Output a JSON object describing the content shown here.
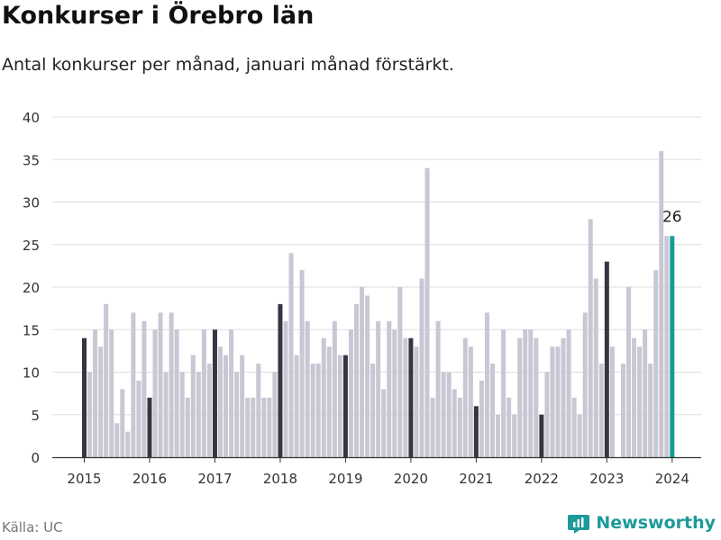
{
  "header": {
    "title": "Konkurser i Örebro län",
    "subtitle": "Antal konkurser per månad, januari månad förstärkt."
  },
  "footer": {
    "source": "Källa: UC",
    "brand": "Newsworthy"
  },
  "colors": {
    "bar": "#c8c8d4",
    "january": "#363642",
    "latest": "#159c94",
    "grid": "#dddddd",
    "axis": "#333333",
    "brand": "#1d9a9a"
  },
  "chart_data": {
    "type": "bar",
    "title": "Konkurser i Örebro län",
    "subtitle": "Antal konkurser per månad, januari månad förstärkt.",
    "xlabel": "",
    "ylabel": "",
    "ylim": [
      0,
      40
    ],
    "y_ticks": [
      0,
      5,
      10,
      15,
      20,
      25,
      30,
      35,
      40
    ],
    "x_tick_labels": [
      "2015",
      "2016",
      "2017",
      "2018",
      "2019",
      "2020",
      "2021",
      "2022",
      "2023",
      "2024"
    ],
    "grid": true,
    "start": "2015-01",
    "highlight": "January bars dark, latest bar teal",
    "last_label": "26",
    "values": [
      14,
      10,
      15,
      13,
      18,
      15,
      4,
      8,
      3,
      17,
      9,
      16,
      7,
      15,
      17,
      10,
      17,
      15,
      10,
      7,
      12,
      10,
      15,
      11,
      15,
      13,
      12,
      15,
      10,
      12,
      7,
      7,
      11,
      7,
      7,
      10,
      18,
      16,
      24,
      12,
      22,
      16,
      11,
      11,
      14,
      13,
      16,
      12,
      12,
      15,
      18,
      20,
      19,
      11,
      16,
      8,
      16,
      15,
      20,
      14,
      14,
      13,
      21,
      34,
      7,
      16,
      10,
      10,
      8,
      7,
      14,
      13,
      6,
      9,
      17,
      11,
      5,
      15,
      7,
      5,
      14,
      15,
      15,
      14,
      5,
      10,
      13,
      13,
      14,
      15,
      7,
      5,
      17,
      28,
      21,
      11,
      23,
      13,
      0,
      11,
      20,
      14,
      13,
      15,
      11,
      22,
      36,
      26,
      26
    ]
  }
}
